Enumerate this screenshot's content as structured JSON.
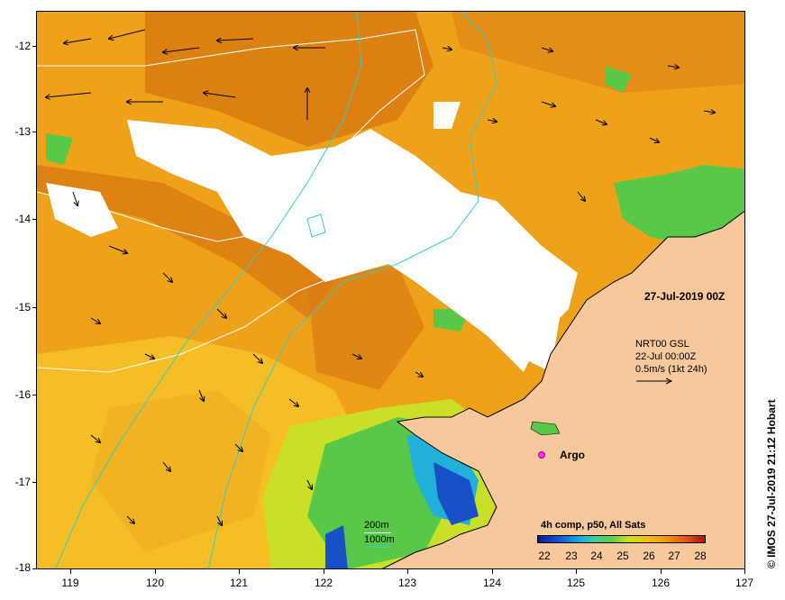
{
  "map": {
    "lon_range": [
      118.6,
      127
    ],
    "lat_range": [
      -18,
      -11.75
    ],
    "lon_ticks": [
      "119",
      "120",
      "121",
      "122",
      "123",
      "124",
      "125",
      "126",
      "127"
    ],
    "lat_ticks": [
      "-12",
      "-13",
      "-14",
      "-15",
      "-16",
      "-17",
      "-18"
    ],
    "date_label": "27-Jul-2019 00Z",
    "model": {
      "line1": "NRT00 GSL",
      "line2": "22-Jul 00:00Z",
      "line3": "0.5m/s (1kt 24h)"
    },
    "argo_label": "Argo",
    "depth_legend": {
      "label_200": "200m",
      "label_1000": "1000m",
      "color_200": "#ffffff",
      "color_1000": "#33cccc"
    },
    "colorbar": {
      "title": "4h comp, p50, All Sats",
      "ticks": [
        "22",
        "23",
        "24",
        "25",
        "26",
        "27",
        "28"
      ]
    },
    "credit": "© IMOS 27-Jul-2019 21:12 Hobart",
    "colors": {
      "land": "#f7c89b",
      "cloud": "#ffffff",
      "warm": "#eea21a",
      "hot": "#d87a12",
      "mild": "#f5be24",
      "cool": "#c9df28",
      "green": "#58c848",
      "cyan": "#20b0d8",
      "blue": "#1850c8"
    }
  }
}
